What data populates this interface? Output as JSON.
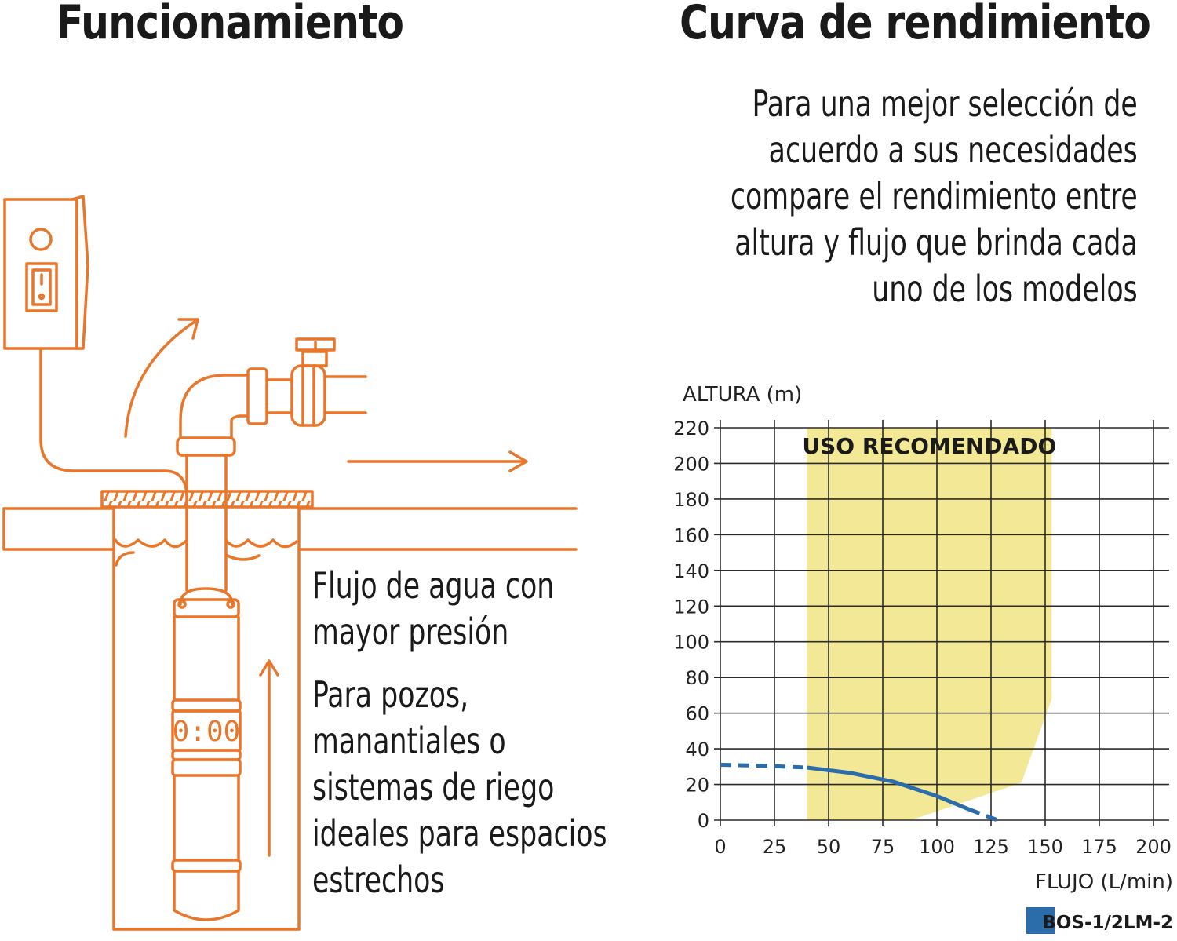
{
  "left_title": "Funcionamiento",
  "right_title": "Curva de rendimiento",
  "intro_lines": [
    "Para una mejor selección de",
    "acuerdo a sus necesidades",
    "compare el rendimiento entre",
    "altura y flujo que brinda cada",
    "uno de los modelos"
  ],
  "flow_lines": [
    "Flujo de agua con",
    "mayor presión"
  ],
  "uses_lines": [
    "Para pozos,",
    "manantiales o",
    "sistemas de riego",
    "ideales para espacios",
    "estrechos"
  ],
  "pump_display": "0:00",
  "colors": {
    "illustration": "#e8762b",
    "zone": "#f3e896",
    "curve": "#2b6cab",
    "grid": "#2a2a2a"
  },
  "chart_data": {
    "type": "line",
    "xlabel": "FLUJO (L/min)",
    "ylabel": "ALTURA (m)",
    "xlim": [
      0,
      200
    ],
    "ylim": [
      0,
      220
    ],
    "x_ticks": [
      "0",
      "25",
      "50",
      "75",
      "100",
      "125",
      "150",
      "175",
      "200"
    ],
    "y_ticks": [
      "0",
      "20",
      "40",
      "60",
      "80",
      "100",
      "120",
      "140",
      "160",
      "180",
      "200",
      "220"
    ],
    "grid": true,
    "zone": {
      "label": "USO RECOMENDADO",
      "polygon": [
        [
          40,
          0
        ],
        [
          40,
          220
        ],
        [
          153,
          220
        ],
        [
          153,
          68
        ],
        [
          139,
          21
        ],
        [
          88,
          0
        ]
      ]
    },
    "series": [
      {
        "name": "BOS-1/2LM-2",
        "points": [
          [
            0,
            31
          ],
          [
            20,
            30.5
          ],
          [
            40,
            29.5
          ],
          [
            60,
            26.5
          ],
          [
            80,
            21.5
          ],
          [
            100,
            13.5
          ],
          [
            115,
            6
          ],
          [
            128,
            0
          ]
        ],
        "solid_range": [
          40,
          115
        ]
      }
    ],
    "legend_position": "bottom-right"
  }
}
